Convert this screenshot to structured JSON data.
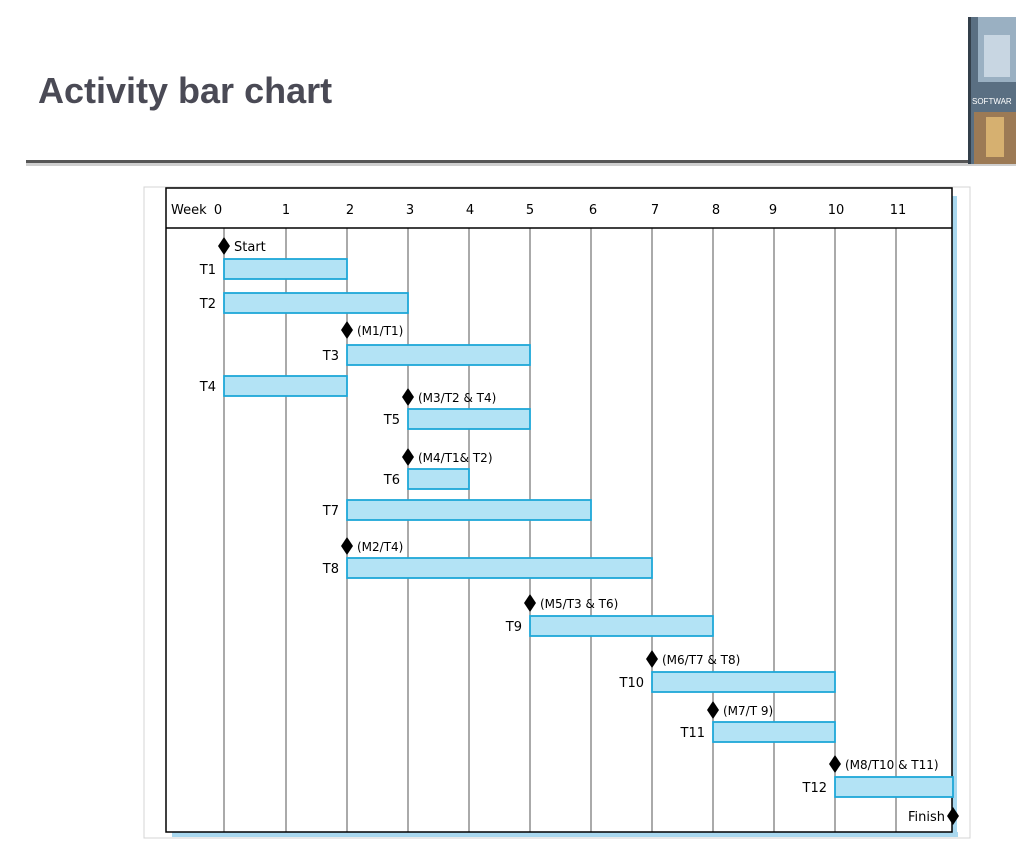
{
  "slide": {
    "title": "Activity bar chart",
    "logo_text": "SOFTWAR"
  },
  "chart_data": {
    "type": "bar",
    "subtype": "gantt",
    "axis_label": "Week",
    "ticks": [
      "0",
      "1",
      "2",
      "3",
      "4",
      "5",
      "6",
      "7",
      "8",
      "9",
      "10",
      "11"
    ],
    "xlim": [
      0,
      12
    ],
    "grid": true,
    "colors": {
      "bar_fill": "#b3e3f5",
      "bar_stroke": "#1ea7d8",
      "shadow": "#a9d8ef",
      "grid": "#000000"
    },
    "rows": [
      {
        "kind": "milestone",
        "label": "Start",
        "week": 0,
        "label_side": "right"
      },
      {
        "kind": "task",
        "label": "T1",
        "start": 0,
        "end": 2
      },
      {
        "kind": "task",
        "label": "T2",
        "start": 0,
        "end": 3
      },
      {
        "kind": "milestone",
        "label": "(M1/T1)",
        "week": 2,
        "label_side": "right"
      },
      {
        "kind": "task",
        "label": "T3",
        "start": 2,
        "end": 5
      },
      {
        "kind": "task",
        "label": "T4",
        "start": 0,
        "end": 2
      },
      {
        "kind": "milestone",
        "label": "(M3/T2 & T4)",
        "week": 3,
        "label_side": "right"
      },
      {
        "kind": "task",
        "label": "T5",
        "start": 3,
        "end": 5
      },
      {
        "kind": "milestone",
        "label": "(M4/T1& T2)",
        "week": 3,
        "label_side": "right"
      },
      {
        "kind": "task",
        "label": "T6",
        "start": 3,
        "end": 4
      },
      {
        "kind": "task",
        "label": "T7",
        "start": 2,
        "end": 6
      },
      {
        "kind": "milestone",
        "label": "(M2/T4)",
        "week": 2,
        "label_side": "right"
      },
      {
        "kind": "task",
        "label": "T8",
        "start": 2,
        "end": 7
      },
      {
        "kind": "milestone",
        "label": "(M5/T3 & T6)",
        "week": 5,
        "label_side": "right"
      },
      {
        "kind": "task",
        "label": "T9",
        "start": 5,
        "end": 8
      },
      {
        "kind": "milestone",
        "label": "(M6/T7 & T8)",
        "week": 7,
        "label_side": "right"
      },
      {
        "kind": "task",
        "label": "T10",
        "start": 7,
        "end": 10
      },
      {
        "kind": "milestone",
        "label": "(M7/T 9)",
        "week": 8,
        "label_side": "right"
      },
      {
        "kind": "task",
        "label": "T11",
        "start": 8,
        "end": 10
      },
      {
        "kind": "milestone",
        "label": "(M8/T10 & T11)",
        "week": 10,
        "label_side": "right"
      },
      {
        "kind": "task",
        "label": "T12",
        "start": 10,
        "end": 12
      },
      {
        "kind": "milestone",
        "label": "Finish",
        "week": 12,
        "label_side": "left"
      }
    ]
  }
}
